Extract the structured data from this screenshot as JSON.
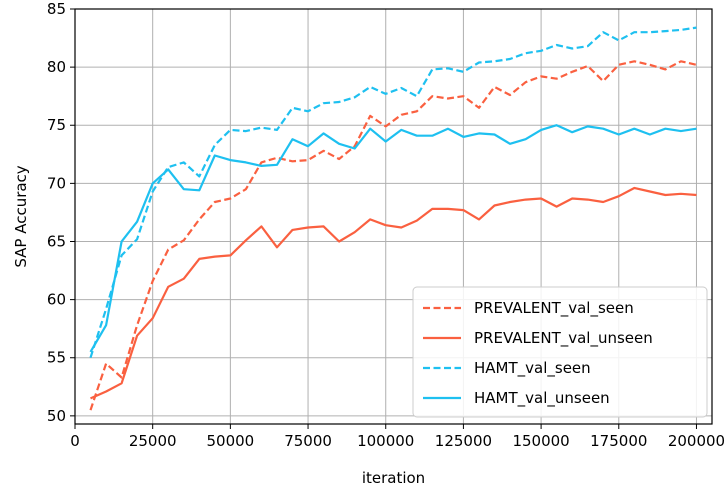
{
  "chart_data": {
    "type": "line",
    "title": "",
    "xlabel": "iteration",
    "ylabel": "SAP Accuracy",
    "xlim": [
      0,
      205000
    ],
    "ylim": [
      49.3,
      85
    ],
    "x_ticks": [
      0,
      25000,
      50000,
      75000,
      100000,
      125000,
      150000,
      175000,
      200000
    ],
    "y_ticks": [
      50,
      55,
      60,
      65,
      70,
      75,
      80,
      85
    ],
    "grid": true,
    "legend_position": "lower-right",
    "x": [
      5000,
      10000,
      15000,
      20000,
      25000,
      30000,
      35000,
      40000,
      45000,
      50000,
      55000,
      60000,
      65000,
      70000,
      75000,
      80000,
      85000,
      90000,
      95000,
      100000,
      105000,
      110000,
      115000,
      120000,
      125000,
      130000,
      135000,
      140000,
      145000,
      150000,
      155000,
      160000,
      165000,
      170000,
      175000,
      180000,
      185000,
      190000,
      195000,
      200000
    ],
    "series": [
      {
        "name": "PREVALENT_val_seen",
        "color": "#fa6040",
        "style": "dashed",
        "values": [
          50.5,
          54.5,
          53.3,
          57.8,
          61.6,
          64.3,
          65.1,
          66.9,
          68.4,
          68.7,
          69.5,
          71.8,
          72.2,
          71.9,
          72.0,
          72.8,
          72.1,
          73.2,
          75.8,
          74.9,
          75.9,
          76.2,
          77.5,
          77.3,
          77.5,
          76.5,
          78.3,
          77.6,
          78.7,
          79.2,
          79.0,
          79.6,
          80.1,
          78.8,
          80.2,
          80.5,
          80.2,
          79.8,
          80.5,
          80.2
        ]
      },
      {
        "name": "PREVALENT_val_unseen",
        "color": "#fa6040",
        "style": "solid",
        "values": [
          51.5,
          52.1,
          52.8,
          56.9,
          58.4,
          61.1,
          61.8,
          63.5,
          63.7,
          63.8,
          65.1,
          66.3,
          64.5,
          66.0,
          66.2,
          66.3,
          65.0,
          65.8,
          66.9,
          66.4,
          66.2,
          66.8,
          67.8,
          67.8,
          67.7,
          66.9,
          68.1,
          68.4,
          68.6,
          68.7,
          68.0,
          68.7,
          68.6,
          68.4,
          68.9,
          69.6,
          69.3,
          69.0,
          69.1,
          69.0
        ]
      },
      {
        "name": "HAMT_val_seen",
        "color": "#1ec0f0",
        "style": "dashed",
        "values": [
          55.0,
          59.2,
          63.8,
          65.2,
          69.3,
          71.4,
          71.8,
          70.6,
          73.3,
          74.6,
          74.5,
          74.8,
          74.6,
          76.5,
          76.2,
          76.9,
          77.0,
          77.4,
          78.3,
          77.7,
          78.2,
          77.5,
          79.8,
          79.9,
          79.6,
          80.4,
          80.5,
          80.7,
          81.2,
          81.4,
          81.9,
          81.6,
          81.8,
          83.0,
          82.3,
          83.0,
          83.0,
          83.1,
          83.2,
          83.4
        ]
      },
      {
        "name": "HAMT_val_unseen",
        "color": "#1ec0f0",
        "style": "solid",
        "values": [
          55.5,
          57.8,
          65.0,
          66.7,
          70.0,
          71.2,
          69.5,
          69.4,
          72.4,
          72.0,
          71.8,
          71.5,
          71.6,
          73.8,
          73.2,
          74.3,
          73.4,
          73.0,
          74.7,
          73.6,
          74.6,
          74.1,
          74.1,
          74.7,
          74.0,
          74.3,
          74.2,
          73.4,
          73.8,
          74.6,
          75.0,
          74.4,
          74.9,
          74.7,
          74.2,
          74.7,
          74.2,
          74.7,
          74.5,
          74.7
        ]
      }
    ]
  }
}
